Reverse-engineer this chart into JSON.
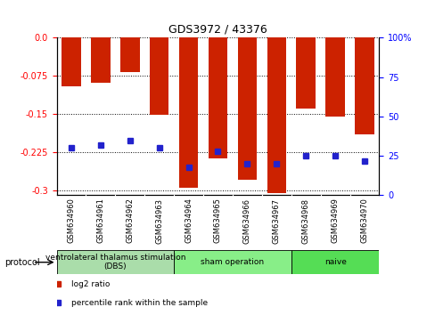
{
  "title": "GDS3972 / 43376",
  "samples": [
    "GSM634960",
    "GSM634961",
    "GSM634962",
    "GSM634963",
    "GSM634964",
    "GSM634965",
    "GSM634966",
    "GSM634967",
    "GSM634968",
    "GSM634969",
    "GSM634970"
  ],
  "log2_ratio": [
    -0.095,
    -0.088,
    -0.068,
    -0.152,
    -0.295,
    -0.237,
    -0.28,
    -0.305,
    -0.14,
    -0.155,
    -0.19
  ],
  "percentile_rank": [
    30,
    32,
    35,
    30,
    18,
    28,
    20,
    20,
    25,
    25,
    22
  ],
  "bar_color": "#CC2200",
  "dot_color": "#2222CC",
  "ylim_left": [
    -0.31,
    0.0
  ],
  "ylim_right": [
    0,
    100
  ],
  "yticks_left": [
    0.0,
    -0.075,
    -0.15,
    -0.225,
    -0.3
  ],
  "yticks_right": [
    0,
    25,
    50,
    75,
    100
  ],
  "groups": [
    {
      "label": "ventrolateral thalamus stimulation\n(DBS)",
      "start": 0,
      "end": 3,
      "color": "#aaddaa"
    },
    {
      "label": "sham operation",
      "start": 4,
      "end": 7,
      "color": "#88ee88"
    },
    {
      "label": "naive",
      "start": 8,
      "end": 10,
      "color": "#55dd55"
    }
  ],
  "legend_items": [
    {
      "label": "log2 ratio",
      "color": "#CC2200"
    },
    {
      "label": "percentile rank within the sample",
      "color": "#2222CC"
    }
  ],
  "bar_width": 0.65
}
